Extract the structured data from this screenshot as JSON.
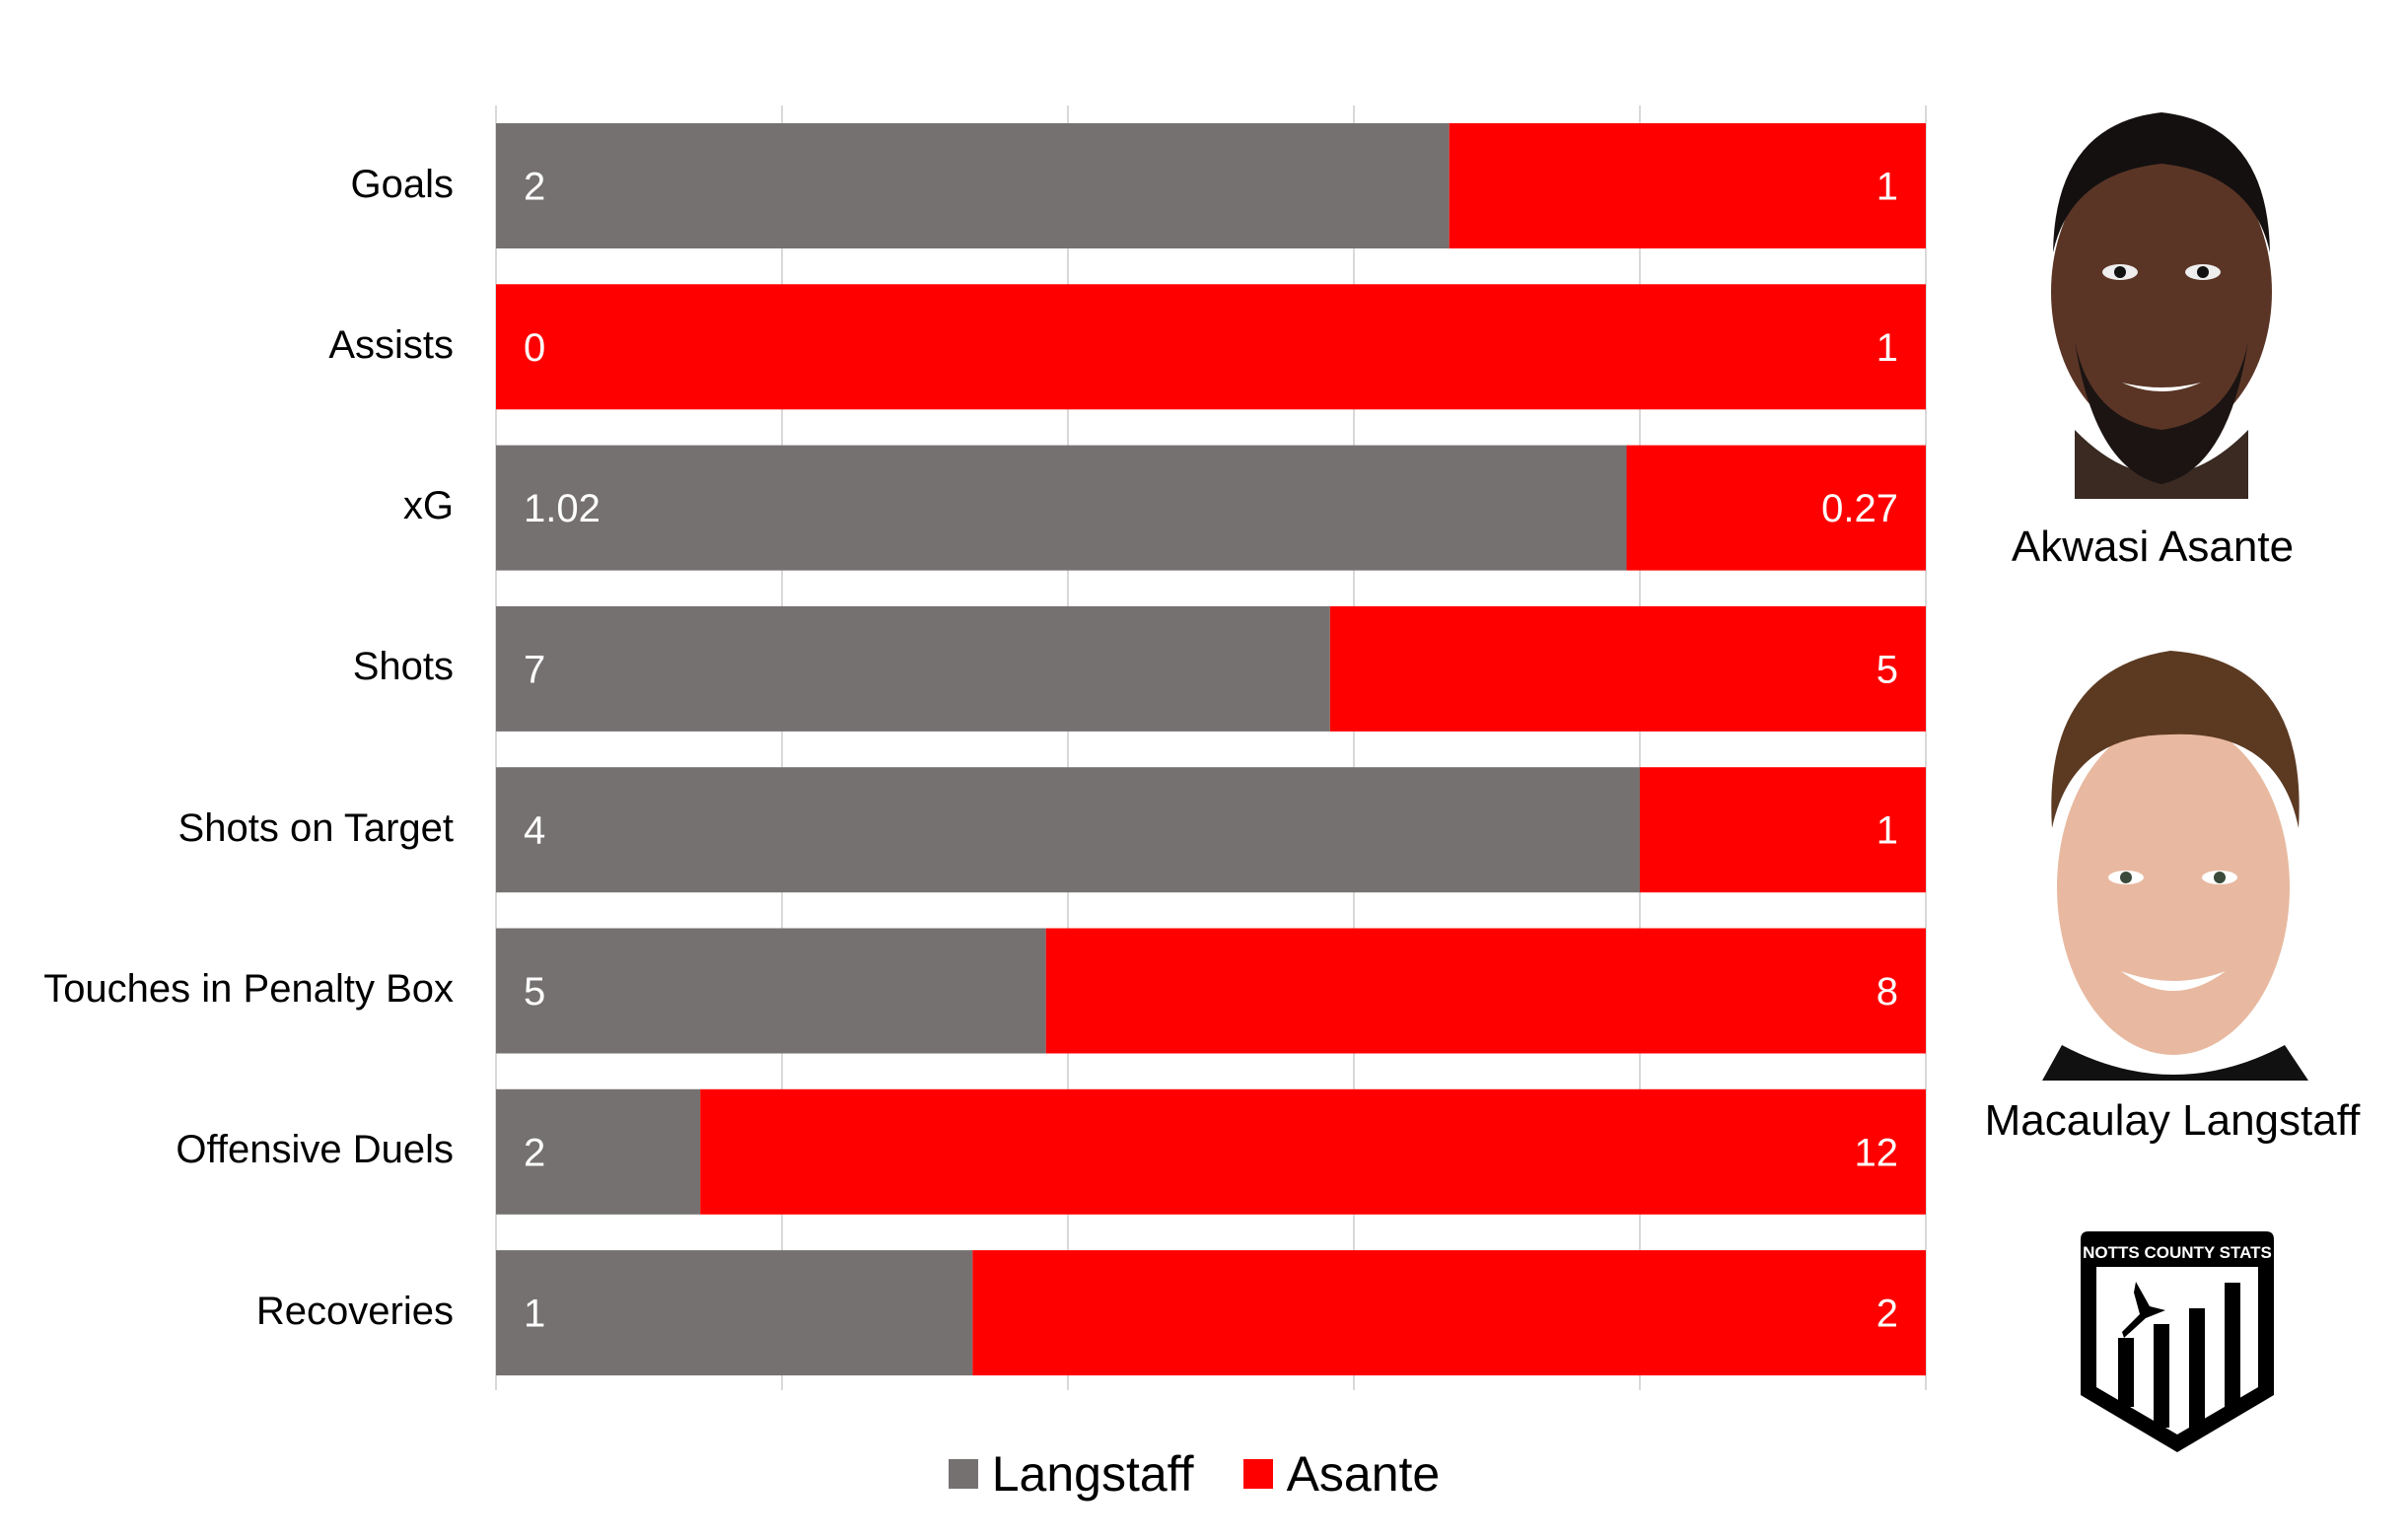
{
  "chart_data": {
    "type": "bar",
    "orientation": "horizontal",
    "stacking": "percent",
    "categories": [
      "Goals",
      "Assists",
      "xG",
      "Shots",
      "Shots on Target",
      "Touches in Penalty Box",
      "Offensive Duels",
      "Recoveries"
    ],
    "series": [
      {
        "name": "Langstaff",
        "color": "#767171",
        "values": [
          2,
          0,
          1.02,
          7,
          4,
          5,
          2,
          1
        ],
        "labels": [
          "2",
          "0",
          "1.02",
          "7",
          "4",
          "5",
          "2",
          "1"
        ]
      },
      {
        "name": "Asante",
        "color": "#ff0000",
        "values": [
          1,
          1,
          0.27,
          5,
          1,
          8,
          12,
          2
        ],
        "labels": [
          "1",
          "1",
          "0.27",
          "5",
          "1",
          "8",
          "12",
          "2"
        ]
      }
    ],
    "xlim": [
      0,
      1
    ],
    "grid": true,
    "legend": "bottom-center"
  },
  "players": {
    "top_name": "Akwasi Asante",
    "bottom_name": "Macaulay Langstaff"
  },
  "logo_text": "NOTTS COUNTY STATS"
}
